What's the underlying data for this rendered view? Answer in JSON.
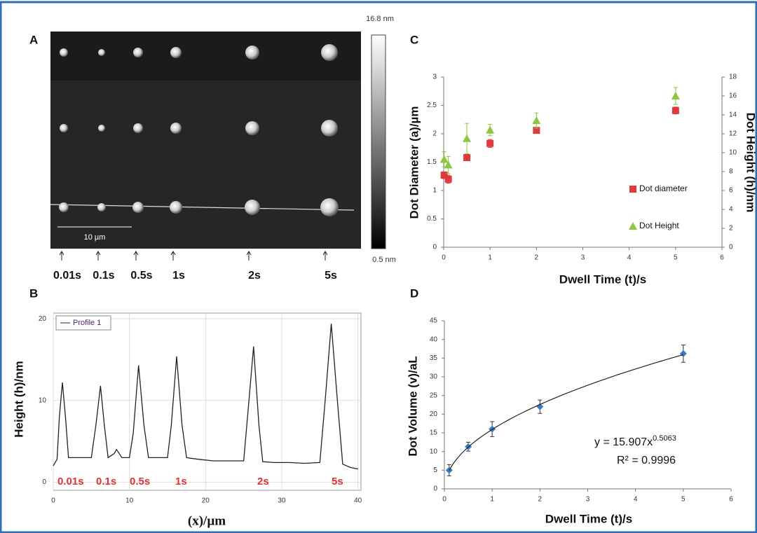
{
  "image_panel": {
    "panel": "A",
    "colorbar_max": "16.8 nm",
    "colorbar_min": "0.5 nm",
    "scale_bar": "10 µm",
    "time_labels": [
      "0.01s",
      "0.1s",
      "0.5s",
      "1s",
      "2s",
      "5s"
    ]
  },
  "chart_data": [
    {
      "type": "line",
      "panel": "B",
      "y_label": "Height (h)/nm",
      "x_label": "(x)/µm",
      "xlim": [
        0,
        40.4
      ],
      "ylim": [
        -1,
        20.7
      ],
      "xticks": [
        0,
        10,
        20,
        30,
        40
      ],
      "yticks": [
        0,
        10,
        20
      ],
      "grid": true,
      "series": [
        {
          "name": "Profile 1",
          "color": "#222222",
          "x": [
            0,
            0.5,
            0.8,
            1.2,
            1.6,
            2.0,
            3,
            4,
            5,
            5.6,
            6.2,
            6.7,
            7.2,
            8,
            8.3,
            9,
            10,
            10.5,
            11.2,
            11.9,
            12.5,
            13.5,
            15,
            15.5,
            16.2,
            16.9,
            17.5,
            19,
            21,
            23,
            25,
            25.6,
            26.3,
            27,
            27.5,
            29,
            31,
            33,
            35,
            35.7,
            36.5,
            37.3,
            38,
            39,
            40
          ],
          "values": [
            2,
            2.8,
            8,
            12.2,
            8,
            3,
            3,
            3,
            3,
            7,
            11.8,
            7,
            3,
            3.5,
            4,
            3,
            3,
            6,
            14.3,
            7,
            3,
            3,
            3,
            7,
            15.4,
            7,
            3,
            2.8,
            2.6,
            2.6,
            2.6,
            9,
            16.6,
            7,
            2.5,
            2.4,
            2.4,
            2.3,
            2.4,
            10,
            19.4,
            10,
            2.2,
            1.8,
            1.6
          ]
        }
      ],
      "annotations": [
        "0.01s",
        "0.1s",
        "0.5s",
        "1s",
        "2s",
        "5s"
      ]
    },
    {
      "type": "scatter",
      "panel": "C",
      "y_label": "Dot Diameter (a)/µm",
      "y2_label": "Dot Height (h)/nm",
      "x_label": "Dwell Time (t)/s",
      "xlim": [
        0,
        6
      ],
      "ylim": [
        0,
        3
      ],
      "y2lim": [
        0,
        18
      ],
      "xticks": [
        0,
        1,
        2,
        3,
        4,
        5,
        6
      ],
      "yticks": [
        0,
        0.5,
        1,
        1.5,
        2,
        2.5,
        3
      ],
      "y2ticks": [
        0,
        2,
        4,
        6,
        8,
        10,
        12,
        14,
        16,
        18
      ],
      "series": [
        {
          "name": "Dot diameter",
          "color": "#e0393e",
          "marker": "square",
          "x": [
            0.01,
            0.1,
            0.5,
            1,
            2,
            5
          ],
          "values": [
            1.27,
            1.2,
            1.58,
            1.83,
            2.06,
            2.41
          ],
          "errors": [
            0.06,
            0.07,
            0.04,
            0.07,
            0.04,
            0.06
          ]
        },
        {
          "name": "Dot Height",
          "color": "#8dc63f",
          "marker": "triangle",
          "axis": "y2",
          "x": [
            0.01,
            0.1,
            0.5,
            1,
            2,
            5
          ],
          "values": [
            9.3,
            8.7,
            11.5,
            12.4,
            13.4,
            16.0
          ],
          "errors": [
            0.8,
            0.9,
            1.6,
            0.6,
            0.8,
            0.9
          ]
        }
      ]
    },
    {
      "type": "scatter",
      "panel": "D",
      "y_label": "Dot Volume (v)/aL",
      "x_label": "Dwell Time (t)/s",
      "xlim": [
        0,
        6
      ],
      "ylim": [
        0,
        45
      ],
      "xticks": [
        0,
        1,
        2,
        3,
        4,
        5,
        6
      ],
      "yticks": [
        0,
        5,
        10,
        15,
        20,
        25,
        30,
        35,
        40,
        45
      ],
      "series": [
        {
          "color": "#3a7cc4",
          "marker": "diamond",
          "x": [
            0.1,
            0.5,
            1,
            2,
            5
          ],
          "values": [
            5,
            11.3,
            16,
            22,
            36.2
          ],
          "errors": [
            1.5,
            1.2,
            2,
            1.8,
            2.3
          ]
        }
      ],
      "fit": {
        "lhs": "y = ",
        "a": 15.907,
        "var": "x",
        "b": 0.5063,
        "r2_label": "R² = 0.9996"
      }
    }
  ]
}
